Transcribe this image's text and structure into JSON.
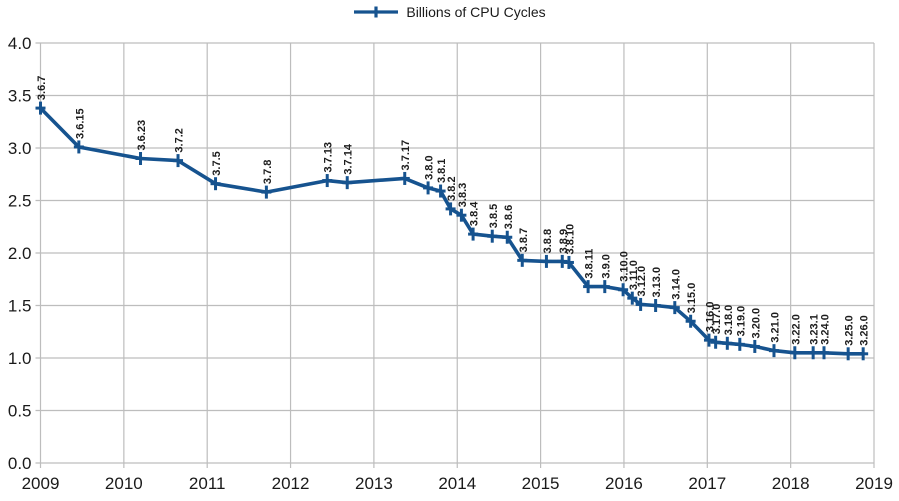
{
  "legend": {
    "label": "Billions of CPU Cycles"
  },
  "colors": {
    "line": "#16538f",
    "grid": "#bdbdbd",
    "tick_text": "#1a1a1a",
    "point_label_text": "#1d1d1d",
    "background": "#ffffff"
  },
  "chart_data": {
    "type": "line",
    "title": "",
    "xlabel": "",
    "ylabel": "",
    "legend_position": "top-center",
    "grid": true,
    "xlim": [
      2009,
      2019
    ],
    "ylim": [
      0.0,
      4.0
    ],
    "x_ticks": [
      "2009",
      "2010",
      "2011",
      "2012",
      "2013",
      "2014",
      "2015",
      "2016",
      "2017",
      "2018",
      "2019"
    ],
    "y_ticks": [
      "0.0",
      "0.5",
      "1.0",
      "1.5",
      "2.0",
      "2.5",
      "3.0",
      "3.5",
      "4.0"
    ],
    "series": [
      {
        "name": "Billions of CPU Cycles",
        "color": "#16538f",
        "marker": "plus",
        "points": [
          {
            "label": "3.6.7",
            "x": 2009.0,
            "y": 3.38
          },
          {
            "label": "3.6.15",
            "x": 2009.46,
            "y": 3.01
          },
          {
            "label": "3.6.23",
            "x": 2010.2,
            "y": 2.9
          },
          {
            "label": "3.7.2",
            "x": 2010.65,
            "y": 2.88
          },
          {
            "label": "3.7.5",
            "x": 2011.1,
            "y": 2.66
          },
          {
            "label": "3.7.8",
            "x": 2011.71,
            "y": 2.58
          },
          {
            "label": "3.7.13",
            "x": 2012.44,
            "y": 2.69
          },
          {
            "label": "3.7.14",
            "x": 2012.68,
            "y": 2.67
          },
          {
            "label": "3.7.17",
            "x": 2013.37,
            "y": 2.71
          },
          {
            "label": "3.8.0",
            "x": 2013.65,
            "y": 2.62
          },
          {
            "label": "3.8.1",
            "x": 2013.8,
            "y": 2.59
          },
          {
            "label": "3.8.2",
            "x": 2013.92,
            "y": 2.42
          },
          {
            "label": "3.8.3",
            "x": 2014.05,
            "y": 2.36
          },
          {
            "label": "3.8.4",
            "x": 2014.19,
            "y": 2.18
          },
          {
            "label": "3.8.5",
            "x": 2014.42,
            "y": 2.16
          },
          {
            "label": "3.8.6",
            "x": 2014.6,
            "y": 2.15
          },
          {
            "label": "3.8.7",
            "x": 2014.78,
            "y": 1.93
          },
          {
            "label": "3.8.8",
            "x": 2015.07,
            "y": 1.92
          },
          {
            "label": "3.8.9",
            "x": 2015.26,
            "y": 1.92
          },
          {
            "label": "3.8.10",
            "x": 2015.34,
            "y": 1.91
          },
          {
            "label": "3.8.11",
            "x": 2015.57,
            "y": 1.68
          },
          {
            "label": "3.9.0",
            "x": 2015.77,
            "y": 1.68
          },
          {
            "label": "3.10.0",
            "x": 2015.99,
            "y": 1.65
          },
          {
            "label": "3.11.0",
            "x": 2016.1,
            "y": 1.57
          },
          {
            "label": "3.12.0",
            "x": 2016.2,
            "y": 1.51
          },
          {
            "label": "3.13.0",
            "x": 2016.38,
            "y": 1.5
          },
          {
            "label": "3.14.0",
            "x": 2016.61,
            "y": 1.48
          },
          {
            "label": "3.15.0",
            "x": 2016.8,
            "y": 1.35
          },
          {
            "label": "3.16.0",
            "x": 2017.02,
            "y": 1.17
          },
          {
            "label": "3.17.0",
            "x": 2017.1,
            "y": 1.15
          },
          {
            "label": "3.18.0",
            "x": 2017.24,
            "y": 1.14
          },
          {
            "label": "3.19.0",
            "x": 2017.39,
            "y": 1.13
          },
          {
            "label": "3.20.0",
            "x": 2017.57,
            "y": 1.11
          },
          {
            "label": "3.21.0",
            "x": 2017.8,
            "y": 1.07
          },
          {
            "label": "3.22.0",
            "x": 2018.05,
            "y": 1.05
          },
          {
            "label": "3.23.1",
            "x": 2018.27,
            "y": 1.05
          },
          {
            "label": "3.24.0",
            "x": 2018.4,
            "y": 1.05
          },
          {
            "label": "3.25.0",
            "x": 2018.69,
            "y": 1.04
          },
          {
            "label": "3.26.0",
            "x": 2018.87,
            "y": 1.04
          }
        ]
      }
    ]
  }
}
